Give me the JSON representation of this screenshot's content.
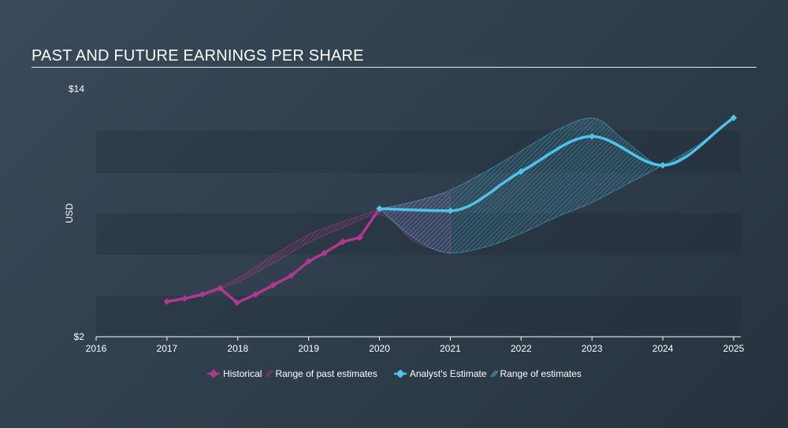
{
  "title": "PAST AND FUTURE EARNINGS PER SHARE",
  "chart_data": {
    "type": "line",
    "ylabel": "USD",
    "ylim": [
      2,
      14
    ],
    "y_ticks": [
      "$14",
      "$2"
    ],
    "xlim": [
      2016,
      2025.1
    ],
    "x_ticks": [
      "2016",
      "2017",
      "2018",
      "2019",
      "2020",
      "2021",
      "2022",
      "2023",
      "2024",
      "2025"
    ],
    "series": [
      {
        "name": "Historical",
        "color": "#b0398f",
        "x": [
          2017.0,
          2017.25,
          2017.5,
          2017.75,
          2017.99,
          2018.25,
          2018.5,
          2018.75,
          2019.0,
          2019.22,
          2019.48,
          2019.72,
          2020.0
        ],
        "y": [
          3.7,
          3.85,
          4.05,
          4.35,
          3.65,
          4.05,
          4.5,
          4.95,
          5.65,
          6.05,
          6.6,
          6.8,
          8.2
        ]
      },
      {
        "name": "Analyst's Estimate",
        "color": "#4fc3e8",
        "x": [
          2020.0,
          2021.0,
          2022.0,
          2023.0,
          2024.0,
          2025.0
        ],
        "y": [
          8.2,
          8.1,
          10.0,
          11.7,
          10.3,
          12.6
        ]
      }
    ],
    "past_range": {
      "name": "Range of past estimates",
      "color": "#b0398f",
      "x": [
        2017.75,
        2018.0,
        2018.5,
        2019.0,
        2019.5,
        2020.0,
        2020.5,
        2021.0
      ],
      "upper": [
        4.4,
        4.85,
        5.95,
        6.95,
        7.6,
        8.15,
        8.55,
        9.0
      ],
      "lower": [
        4.3,
        4.65,
        5.55,
        6.55,
        7.3,
        7.9,
        6.6,
        6.0
      ]
    },
    "future_range": {
      "name": "Range of estimates",
      "color": "#4fc3e8",
      "x": [
        2020.0,
        2020.5,
        2021.0,
        2021.5,
        2022.0,
        2022.5,
        2023.0,
        2023.5,
        2024.0,
        2024.5,
        2025.0
      ],
      "upper": [
        8.2,
        8.55,
        9.1,
        10.0,
        11.0,
        12.0,
        12.6,
        11.4,
        10.3,
        11.3,
        12.6
      ],
      "lower": [
        8.2,
        6.75,
        6.05,
        6.35,
        7.0,
        7.8,
        8.5,
        9.4,
        10.3,
        11.3,
        12.6
      ]
    }
  },
  "legend": {
    "historical": "Historical",
    "past_range": "Range of past estimates",
    "estimate": "Analyst's Estimate",
    "future_range": "Range of estimates"
  }
}
